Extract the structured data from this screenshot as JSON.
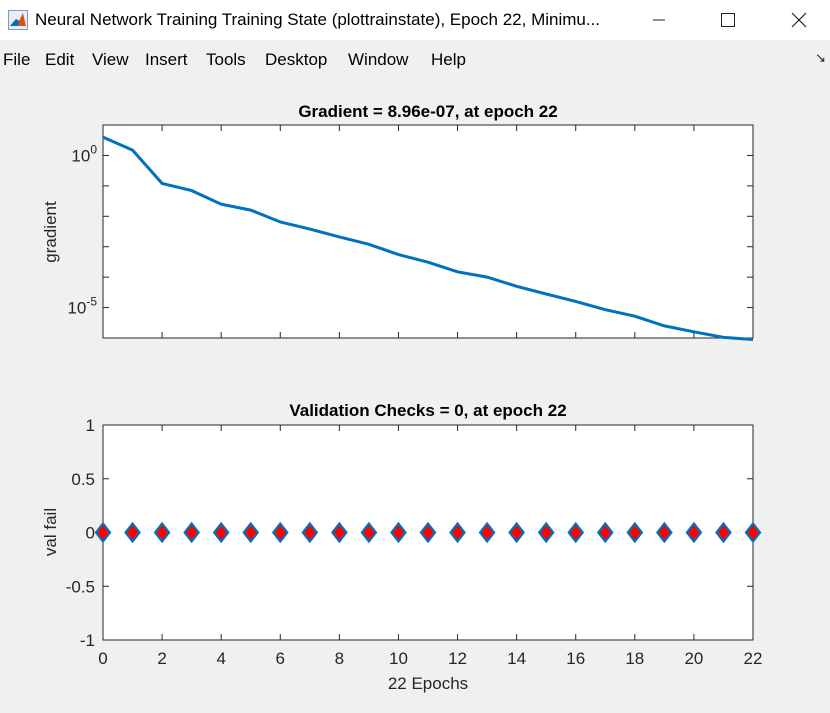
{
  "window": {
    "title": "Neural Network Training Training State (plottrainstate), Epoch 22, Minimu...",
    "app_icon": "matlab-icon",
    "controls": {
      "minimize": "minimize-icon",
      "maximize": "maximize-icon",
      "close": "close-icon"
    }
  },
  "menu": [
    "File",
    "Edit",
    "View",
    "Insert",
    "Tools",
    "Desktop",
    "Window",
    "Help"
  ],
  "dock_icon": "dock-arrow-icon",
  "colors": {
    "line": "#0072bd",
    "marker_face": "#ff0000",
    "marker_edge": "#0072bd"
  },
  "chart_data": [
    {
      "type": "line",
      "title": "Gradient = 8.96e-07, at epoch 22",
      "xlabel": "",
      "ylabel": "gradient",
      "yscale": "log",
      "xlim": [
        0,
        22
      ],
      "ylim": [
        1e-06,
        10
      ],
      "ytick_labels": [
        {
          "value": 1,
          "base": "10",
          "exp": "0"
        },
        {
          "value": 1e-05,
          "base": "10",
          "exp": "-5"
        }
      ],
      "x": [
        0,
        1,
        2,
        3,
        4,
        5,
        6,
        7,
        8,
        9,
        10,
        11,
        12,
        13,
        14,
        15,
        16,
        17,
        18,
        19,
        20,
        21,
        22
      ],
      "y": [
        4.0,
        1.5,
        0.12,
        0.07,
        0.025,
        0.016,
        0.0065,
        0.0038,
        0.0021,
        0.0012,
        0.00055,
        0.00031,
        0.00015,
        0.0001,
        5e-05,
        2.8e-05,
        1.6e-05,
        8.5e-06,
        5.2e-06,
        2.5e-06,
        1.6e-06,
        1.05e-06,
        8.96e-07
      ]
    },
    {
      "type": "scatter",
      "title": "Validation Checks = 0, at epoch 22",
      "xlabel": "22 Epochs",
      "ylabel": "val fail",
      "xlim": [
        0,
        22
      ],
      "ylim": [
        -1,
        1
      ],
      "xticks": [
        0,
        2,
        4,
        6,
        8,
        10,
        12,
        14,
        16,
        18,
        20,
        22
      ],
      "yticks": [
        1,
        0.5,
        0,
        -0.5,
        -1
      ],
      "ytick_labels": [
        "1",
        "0.5",
        "0",
        "-0.5",
        "-1"
      ],
      "x": [
        0,
        1,
        2,
        3,
        4,
        5,
        6,
        7,
        8,
        9,
        10,
        11,
        12,
        13,
        14,
        15,
        16,
        17,
        18,
        19,
        20,
        21,
        22
      ],
      "y": [
        0,
        0,
        0,
        0,
        0,
        0,
        0,
        0,
        0,
        0,
        0,
        0,
        0,
        0,
        0,
        0,
        0,
        0,
        0,
        0,
        0,
        0,
        0
      ]
    }
  ]
}
